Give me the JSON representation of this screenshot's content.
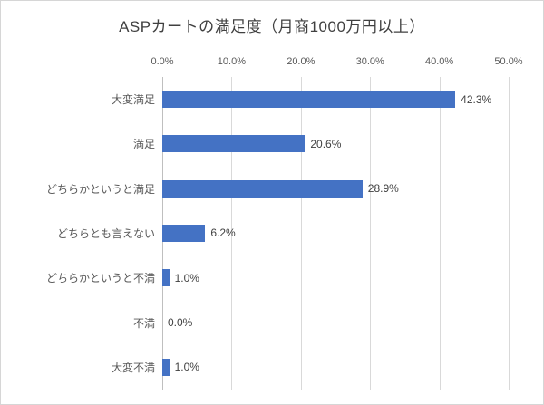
{
  "title": "ASPカートの満足度（月商1000万円以上）",
  "chart_data": {
    "type": "bar",
    "orientation": "horizontal",
    "title": "ASPカートの満足度（月商1000万円以上）",
    "categories": [
      "大変満足",
      "満足",
      "どちらかというと満足",
      "どちらとも言えない",
      "どちらかというと不満",
      "不満",
      "大変不満"
    ],
    "values": [
      42.3,
      20.6,
      28.9,
      6.2,
      1.0,
      0.0,
      1.0
    ],
    "value_labels": [
      "42.3%",
      "20.6%",
      "28.9%",
      "6.2%",
      "1.0%",
      "0.0%",
      "1.0%"
    ],
    "x_ticks": [
      "0.0%",
      "10.0%",
      "20.0%",
      "30.0%",
      "40.0%",
      "50.0%"
    ],
    "x_tick_values": [
      0,
      10,
      20,
      30,
      40,
      50
    ],
    "xlim": [
      0,
      50
    ],
    "xlabel": "",
    "ylabel": "",
    "grid": "vertical",
    "legend": "none",
    "bar_color": "#4472c4",
    "gridline_color": "#d9d9d9",
    "axis_line_color": "#bfbfbf",
    "title_color": "#404040",
    "label_color": "#595959",
    "value_label_color": "#404040"
  }
}
